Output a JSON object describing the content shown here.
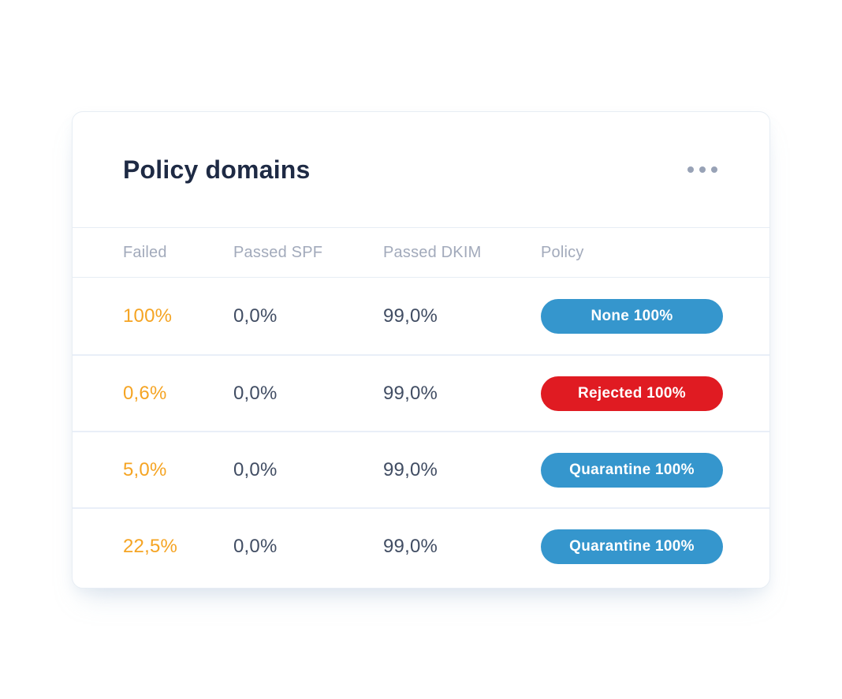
{
  "card": {
    "title": "Policy domains",
    "menu_icon": "ellipsis-icon"
  },
  "table": {
    "columns": [
      {
        "label": "Failed"
      },
      {
        "label": "Passed SPF"
      },
      {
        "label": "Passed DKIM"
      },
      {
        "label": "Policy"
      }
    ],
    "rows": [
      {
        "failed": "100%",
        "passed_spf": "0,0%",
        "passed_dkim": "99,0%",
        "policy_label": "None 100%",
        "policy_color": "#3596cd"
      },
      {
        "failed": "0,6%",
        "passed_spf": "0,0%",
        "passed_dkim": "99,0%",
        "policy_label": "Rejected 100%",
        "policy_color": "#e01b22"
      },
      {
        "failed": "5,0%",
        "passed_spf": "0,0%",
        "passed_dkim": "99,0%",
        "policy_label": "Quarantine 100%",
        "policy_color": "#3596cd"
      },
      {
        "failed": "22,5%",
        "passed_spf": "0,0%",
        "passed_dkim": "99,0%",
        "policy_label": "Quarantine 100%",
        "policy_color": "#3596cd"
      }
    ]
  },
  "colors": {
    "accent_orange": "#f5a423",
    "badge_blue": "#3596cd",
    "badge_red": "#e01b22",
    "title_text": "#1e2a44",
    "cell_text": "#414d63",
    "header_text": "#a2aabb",
    "row_divider": "#e9eff8",
    "card_border": "#e7edf4"
  }
}
